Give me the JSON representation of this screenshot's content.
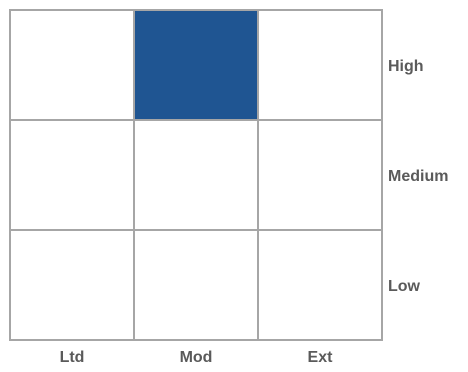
{
  "chart_data": {
    "type": "heatmap",
    "columns": [
      "Ltd",
      "Mod",
      "Ext"
    ],
    "rows": [
      "High",
      "Medium",
      "Low"
    ],
    "highlighted": [
      {
        "row": "High",
        "column": "Mod"
      }
    ],
    "grid": true,
    "colors": {
      "highlight": "#1f5592",
      "empty": "#ffffff",
      "grid_line": "#a6a6a6",
      "label_text": "#5a5a5a"
    }
  }
}
